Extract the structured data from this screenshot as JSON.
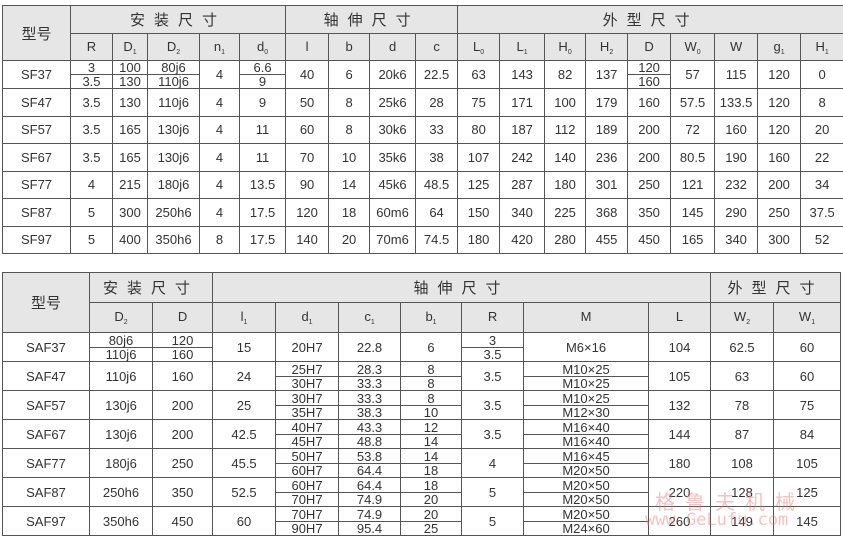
{
  "table1": {
    "model_label": "型号",
    "groups": [
      "安装尺寸",
      "轴伸尺寸",
      "外型尺寸"
    ],
    "columns": [
      [
        "R",
        ""
      ],
      [
        "D",
        "1"
      ],
      [
        "D",
        "2"
      ],
      [
        "n",
        "1"
      ],
      [
        "d",
        "0"
      ],
      [
        "l",
        ""
      ],
      [
        "b",
        ""
      ],
      [
        "d",
        ""
      ],
      [
        "c",
        ""
      ],
      [
        "L",
        "0"
      ],
      [
        "L",
        "1"
      ],
      [
        "H",
        "0"
      ],
      [
        "H",
        "2"
      ],
      [
        "D",
        ""
      ],
      [
        "W",
        "0"
      ],
      [
        "W",
        ""
      ],
      [
        "g",
        "1"
      ],
      [
        "H",
        "1"
      ]
    ],
    "rows": [
      [
        "SF37",
        [
          "3",
          "3.5"
        ],
        [
          "100",
          "130"
        ],
        [
          "80j6",
          "110j6"
        ],
        "4",
        [
          "6.6",
          "9"
        ],
        "40",
        "6",
        "20k6",
        "22.5",
        "63",
        "143",
        "82",
        "137",
        [
          "120",
          "160"
        ],
        "57",
        "115",
        "120",
        "0"
      ],
      [
        "SF47",
        "3.5",
        "130",
        "110j6",
        "4",
        "9",
        "50",
        "8",
        "25k6",
        "28",
        "75",
        "171",
        "100",
        "179",
        "160",
        "57.5",
        "133.5",
        "120",
        "8"
      ],
      [
        "SF57",
        "3.5",
        "165",
        "130j6",
        "4",
        "11",
        "60",
        "8",
        "30k6",
        "33",
        "80",
        "187",
        "112",
        "189",
        "200",
        "72",
        "160",
        "120",
        "20"
      ],
      [
        "SF67",
        "3.5",
        "165",
        "130j6",
        "4",
        "11",
        "70",
        "10",
        "35k6",
        "38",
        "107",
        "242",
        "140",
        "236",
        "200",
        "80.5",
        "190",
        "160",
        "22"
      ],
      [
        "SF77",
        "4",
        "215",
        "180j6",
        "4",
        "13.5",
        "90",
        "14",
        "45k6",
        "48.5",
        "125",
        "287",
        "180",
        "301",
        "250",
        "121",
        "232",
        "200",
        "34"
      ],
      [
        "SF87",
        "5",
        "300",
        "250h6",
        "4",
        "17.5",
        "120",
        "18",
        "60m6",
        "64",
        "150",
        "340",
        "225",
        "368",
        "350",
        "145",
        "290",
        "250",
        "37.5"
      ],
      [
        "SF97",
        "5",
        "400",
        "350h6",
        "8",
        "17.5",
        "140",
        "20",
        "70m6",
        "74.5",
        "180",
        "420",
        "280",
        "455",
        "450",
        "165",
        "340",
        "300",
        "52"
      ]
    ]
  },
  "table2": {
    "model_label": "型号",
    "groups": [
      "安装尺寸",
      "轴伸尺寸",
      "外型尺寸"
    ],
    "columns": [
      [
        "D",
        "2"
      ],
      [
        "D",
        ""
      ],
      [
        "l",
        "1"
      ],
      [
        "d",
        "1"
      ],
      [
        "c",
        "1"
      ],
      [
        "b",
        "1"
      ],
      [
        "R",
        ""
      ],
      [
        "M",
        ""
      ],
      [
        "L",
        ""
      ],
      [
        "W",
        "2"
      ],
      [
        "W",
        "1"
      ]
    ],
    "rows": [
      [
        "SAF37",
        [
          "80j6",
          "110j6"
        ],
        [
          "120",
          "160"
        ],
        "15",
        "20H7",
        "22.8",
        "6",
        [
          "3",
          "3.5"
        ],
        "M6×16",
        "104",
        "62.5",
        "60"
      ],
      [
        "SAF47",
        "110j6",
        "160",
        "24",
        [
          "25H7",
          "30H7"
        ],
        [
          "28.3",
          "33.3"
        ],
        [
          "8",
          "8"
        ],
        "3.5",
        [
          "M10×25",
          "M10×25"
        ],
        "105",
        "63",
        "60"
      ],
      [
        "SAF57",
        "130j6",
        "200",
        "25",
        [
          "30H7",
          "35H7"
        ],
        [
          "33.3",
          "38.3"
        ],
        [
          "8",
          "10"
        ],
        "3.5",
        [
          "M10×25",
          "M12×30"
        ],
        "132",
        "78",
        "75"
      ],
      [
        "SAF67",
        "130j6",
        "200",
        "42.5",
        [
          "40H7",
          "45H7"
        ],
        [
          "43.3",
          "48.8"
        ],
        [
          "12",
          "14"
        ],
        "3.5",
        [
          "M16×40",
          "M16×40"
        ],
        "144",
        "87",
        "84"
      ],
      [
        "SAF77",
        "180j6",
        "250",
        "45.5",
        [
          "50H7",
          "60H7"
        ],
        [
          "53.8",
          "64.4"
        ],
        [
          "14",
          "18"
        ],
        "4",
        [
          "M16×45",
          "M20×50"
        ],
        "180",
        "108",
        "105"
      ],
      [
        "SAF87",
        "250h6",
        "350",
        "52.5",
        [
          "60H7",
          "70H7"
        ],
        [
          "64.4",
          "74.9"
        ],
        [
          "18",
          "20"
        ],
        "5",
        [
          "M20×50",
          "M20×50"
        ],
        "220",
        "128",
        "125"
      ],
      [
        "SAF97",
        "350h6",
        "450",
        "60",
        [
          "70H7",
          "90H7"
        ],
        [
          "74.9",
          "95.4"
        ],
        [
          "20",
          "25"
        ],
        "5",
        [
          "M20×50",
          "M24×60"
        ],
        "260",
        "149",
        "145"
      ]
    ]
  },
  "watermark": {
    "name": "格鲁夫机械",
    "url": "www.GeLufu.com"
  }
}
